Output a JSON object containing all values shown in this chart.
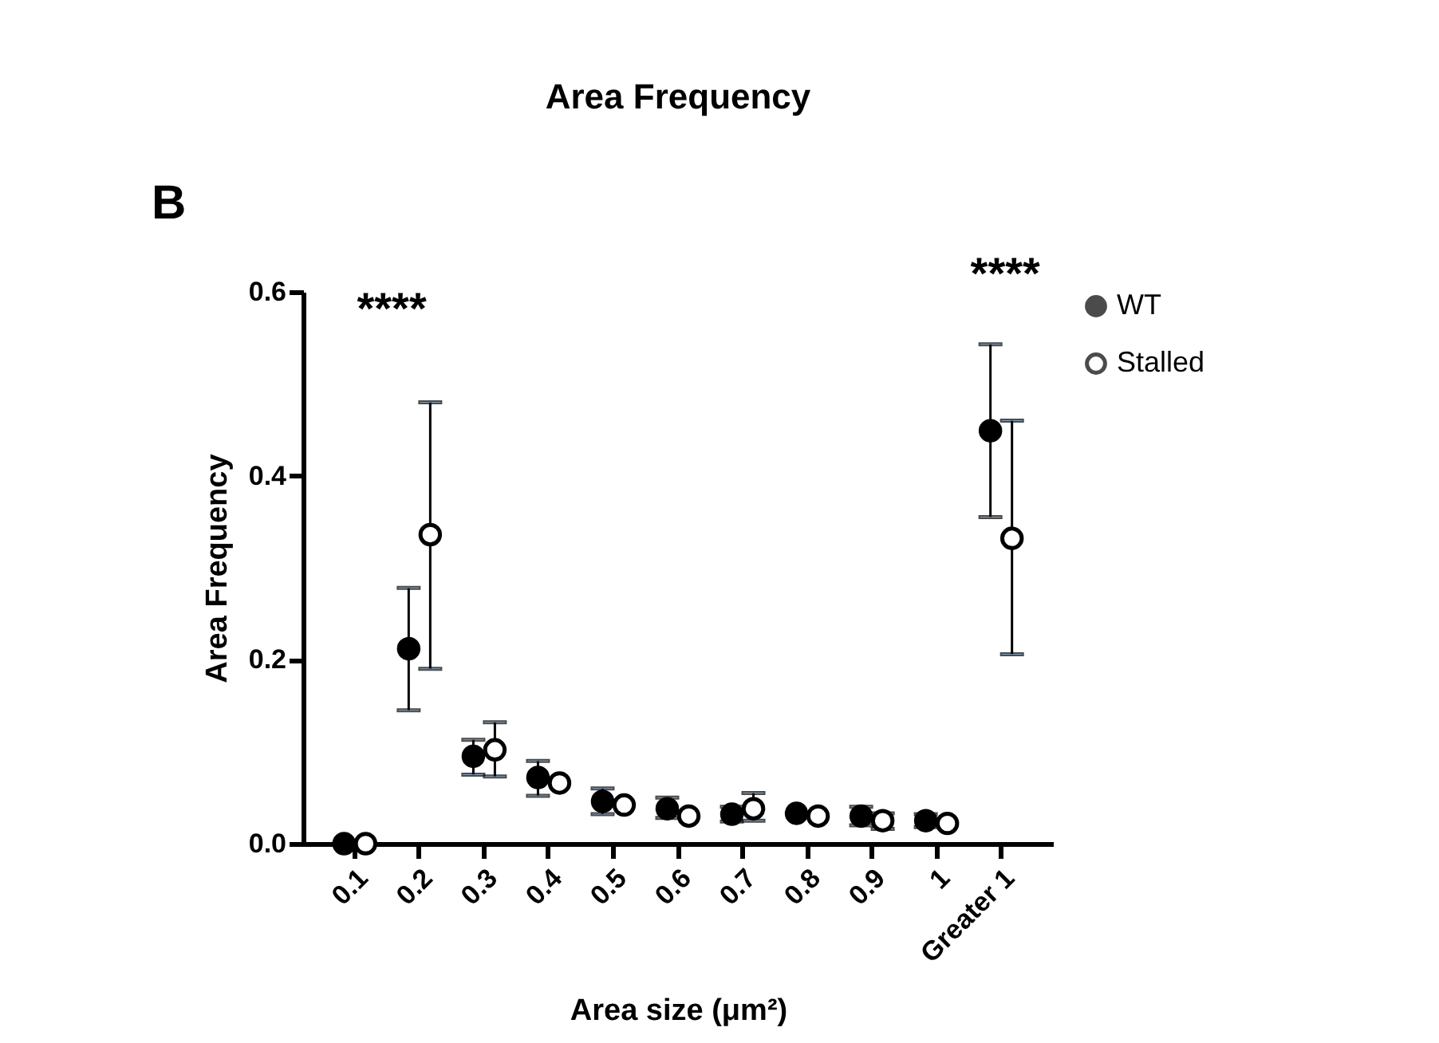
{
  "chart_data": {
    "type": "scatter",
    "title": "Area Frequency",
    "xlabel": "Area size  (μm²)",
    "ylabel": "Area  Frequency",
    "categories": [
      "0.1",
      "0.2",
      "0.3",
      "0.4",
      "0.5",
      "0.6",
      "0.7",
      "0.8",
      "0.9",
      "1",
      "Greater 1"
    ],
    "series": [
      {
        "name": "WT",
        "color": "#000000",
        "values": [
          0,
          0.212,
          0.095,
          0.072,
          0.046,
          0.038,
          0.032,
          0.033,
          0.03,
          0.025,
          0.449
        ],
        "errors": [
          null,
          [
            0.145,
            0.278
          ],
          [
            0.075,
            0.113
          ],
          [
            0.052,
            0.09
          ],
          [
            0.032,
            0.06
          ],
          [
            0.028,
            0.05
          ],
          [
            0.024,
            0.04
          ],
          null,
          [
            0.02,
            0.04
          ],
          [
            0.018,
            0.032
          ],
          [
            0.355,
            0.543
          ]
        ]
      },
      {
        "name": "Stalled",
        "color": "#000000",
        "values": [
          0,
          0.336,
          0.102,
          0.066,
          0.042,
          0.03,
          0.038,
          0.03,
          0.025,
          0.022,
          0.332
        ],
        "errors": [
          null,
          [
            0.19,
            0.48
          ],
          [
            0.073,
            0.132
          ],
          null,
          null,
          null,
          [
            0.025,
            0.055
          ],
          null,
          [
            0.016,
            0.033
          ],
          null,
          [
            0.206,
            0.46
          ]
        ]
      }
    ],
    "ylim": [
      0,
      0.6
    ],
    "yticks": [
      {
        "value": 0,
        "label": "0.0"
      },
      0.2,
      0.4,
      0.6
    ],
    "annotations": [
      "B",
      "****",
      "****"
    ],
    "marker": "circle",
    "legend": "top right",
    "grid": false
  }
}
